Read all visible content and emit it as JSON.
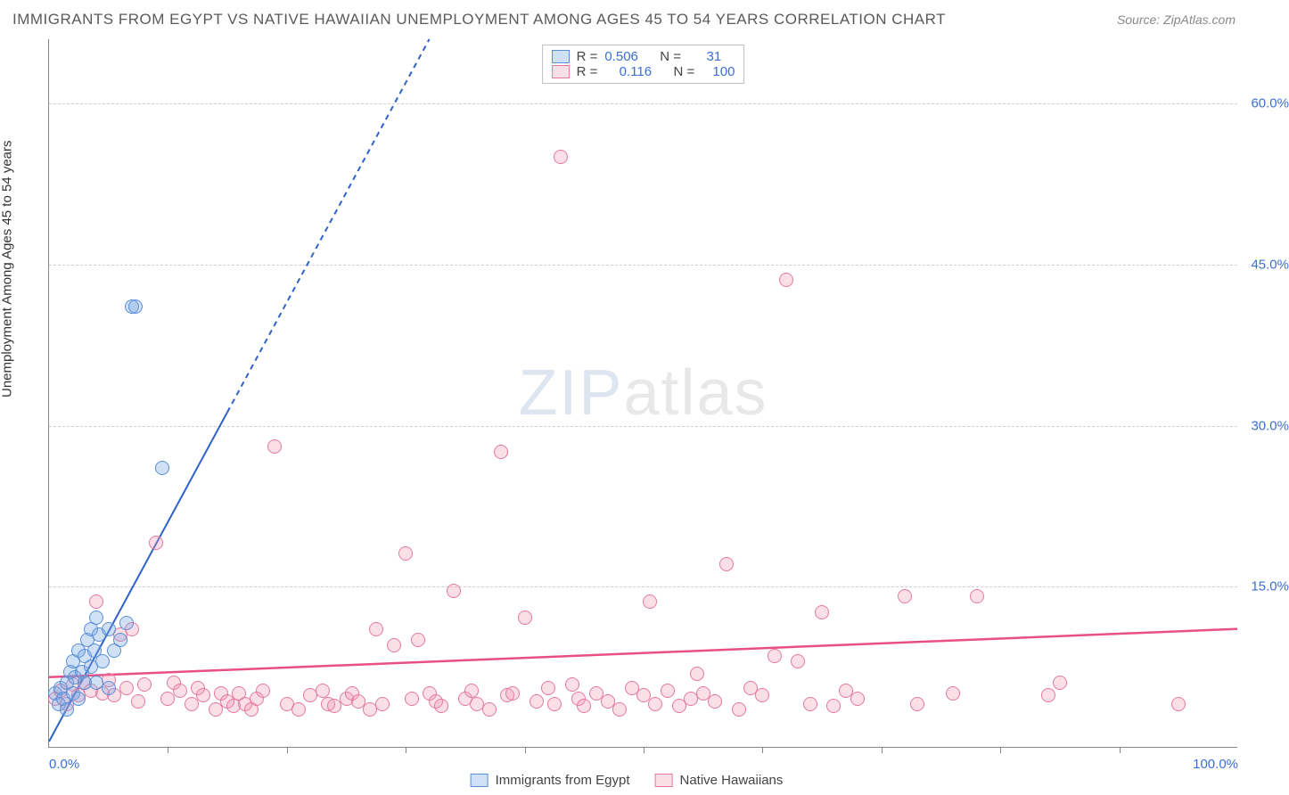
{
  "title": "IMMIGRANTS FROM EGYPT VS NATIVE HAWAIIAN UNEMPLOYMENT AMONG AGES 45 TO 54 YEARS CORRELATION CHART",
  "source": "Source: ZipAtlas.com",
  "y_axis_label": "Unemployment Among Ages 45 to 54 years",
  "watermark": {
    "part1": "ZIP",
    "part2": "atlas"
  },
  "chart": {
    "type": "scatter",
    "xlim": [
      0,
      100
    ],
    "ylim": [
      0,
      66
    ],
    "background_color": "#ffffff",
    "grid_color": "#d0d0d0",
    "axis_color": "#888888",
    "y_ticks": [
      {
        "v": 15,
        "label": "15.0%"
      },
      {
        "v": 30,
        "label": "30.0%"
      },
      {
        "v": 45,
        "label": "45.0%"
      },
      {
        "v": 60,
        "label": "60.0%"
      }
    ],
    "x_ticks_minor": [
      10,
      20,
      30,
      40,
      50,
      60,
      70,
      80,
      90
    ],
    "x_tick_labels": [
      {
        "v": 0,
        "label": "0.0%",
        "align": "left"
      },
      {
        "v": 100,
        "label": "100.0%",
        "align": "right"
      }
    ],
    "point_radius": 8,
    "series": [
      {
        "name": "Immigrants from Egypt",
        "fill": "rgba(120,165,225,0.35)",
        "stroke": "#5a8fd6",
        "trend": {
          "color": "#2f62c9",
          "width": 2,
          "dash_after_x": 15,
          "x1": 0,
          "y1": 0.5,
          "x2": 32,
          "y2": 66
        },
        "R": "0.506",
        "N": "31",
        "points": [
          [
            0.5,
            5
          ],
          [
            0.8,
            4
          ],
          [
            1,
            5.5
          ],
          [
            1.2,
            4.5
          ],
          [
            1.5,
            6
          ],
          [
            1.5,
            3.5
          ],
          [
            1.8,
            7
          ],
          [
            2,
            5
          ],
          [
            2,
            8
          ],
          [
            2.2,
            6.5
          ],
          [
            2.5,
            4.5
          ],
          [
            2.5,
            9
          ],
          [
            2.8,
            7
          ],
          [
            3,
            8.5
          ],
          [
            3,
            6
          ],
          [
            3.2,
            10
          ],
          [
            3.5,
            7.5
          ],
          [
            3.5,
            11
          ],
          [
            3.8,
            9
          ],
          [
            4,
            6
          ],
          [
            4,
            12
          ],
          [
            4.2,
            10.5
          ],
          [
            4.5,
            8
          ],
          [
            5,
            11
          ],
          [
            5.5,
            9
          ],
          [
            6,
            10
          ],
          [
            6.5,
            11.5
          ],
          [
            7,
            41
          ],
          [
            7.3,
            41
          ],
          [
            9.5,
            26
          ],
          [
            5,
            5.5
          ]
        ]
      },
      {
        "name": "Native Hawaiians",
        "fill": "rgba(240,150,175,0.3)",
        "stroke": "#e678a0",
        "trend": {
          "color": "#e84f87",
          "width": 2.5,
          "x1": 0,
          "y1": 6.5,
          "x2": 100,
          "y2": 11
        },
        "R": "0.116",
        "N": "100",
        "points": [
          [
            0.5,
            4.5
          ],
          [
            1,
            5.2
          ],
          [
            1.5,
            4
          ],
          [
            2,
            5.8
          ],
          [
            2.5,
            4.8
          ],
          [
            3,
            6
          ],
          [
            3.5,
            5.2
          ],
          [
            4,
            13.5
          ],
          [
            4.5,
            5
          ],
          [
            5,
            6.2
          ],
          [
            5.5,
            4.8
          ],
          [
            6,
            10.5
          ],
          [
            6.5,
            5.5
          ],
          [
            7,
            11
          ],
          [
            7.5,
            4.2
          ],
          [
            8,
            5.8
          ],
          [
            9,
            19
          ],
          [
            10,
            4.5
          ],
          [
            10.5,
            6
          ],
          [
            11,
            5.2
          ],
          [
            12,
            4
          ],
          [
            12.5,
            5.5
          ],
          [
            13,
            4.8
          ],
          [
            14,
            3.5
          ],
          [
            14.5,
            5
          ],
          [
            15,
            4.2
          ],
          [
            15.5,
            3.8
          ],
          [
            16,
            5
          ],
          [
            16.5,
            4
          ],
          [
            17,
            3.5
          ],
          [
            17.5,
            4.5
          ],
          [
            18,
            5.2
          ],
          [
            19,
            28
          ],
          [
            20,
            4
          ],
          [
            21,
            3.5
          ],
          [
            22,
            4.8
          ],
          [
            23,
            5.2
          ],
          [
            23.5,
            4
          ],
          [
            24,
            3.8
          ],
          [
            25,
            4.5
          ],
          [
            25.5,
            5
          ],
          [
            26,
            4.2
          ],
          [
            27,
            3.5
          ],
          [
            27.5,
            11
          ],
          [
            28,
            4
          ],
          [
            29,
            9.5
          ],
          [
            30,
            18
          ],
          [
            30.5,
            4.5
          ],
          [
            31,
            10
          ],
          [
            32,
            5
          ],
          [
            32.5,
            4.2
          ],
          [
            33,
            3.8
          ],
          [
            34,
            14.5
          ],
          [
            35,
            4.5
          ],
          [
            35.5,
            5.2
          ],
          [
            36,
            4
          ],
          [
            37,
            3.5
          ],
          [
            38,
            27.5
          ],
          [
            38.5,
            4.8
          ],
          [
            39,
            5
          ],
          [
            40,
            12
          ],
          [
            41,
            4.2
          ],
          [
            42,
            5.5
          ],
          [
            42.5,
            4
          ],
          [
            43,
            55
          ],
          [
            44,
            5.8
          ],
          [
            44.5,
            4.5
          ],
          [
            45,
            3.8
          ],
          [
            46,
            5
          ],
          [
            47,
            4.2
          ],
          [
            48,
            3.5
          ],
          [
            49,
            5.5
          ],
          [
            50,
            4.8
          ],
          [
            50.5,
            13.5
          ],
          [
            51,
            4
          ],
          [
            52,
            5.2
          ],
          [
            53,
            3.8
          ],
          [
            54,
            4.5
          ],
          [
            54.5,
            6.8
          ],
          [
            55,
            5
          ],
          [
            56,
            4.2
          ],
          [
            57,
            17
          ],
          [
            58,
            3.5
          ],
          [
            59,
            5.5
          ],
          [
            60,
            4.8
          ],
          [
            61,
            8.5
          ],
          [
            62,
            43.5
          ],
          [
            63,
            8
          ],
          [
            64,
            4
          ],
          [
            65,
            12.5
          ],
          [
            66,
            3.8
          ],
          [
            67,
            5.2
          ],
          [
            68,
            4.5
          ],
          [
            72,
            14
          ],
          [
            73,
            4
          ],
          [
            76,
            5
          ],
          [
            78,
            14
          ],
          [
            84,
            4.8
          ],
          [
            85,
            6
          ],
          [
            95,
            4
          ]
        ]
      }
    ]
  },
  "legend_top_labels": {
    "R": "R =",
    "N": "N ="
  },
  "legend_bottom": [
    {
      "label": "Immigrants from Egypt",
      "fill": "rgba(120,165,225,0.35)",
      "stroke": "#5a8fd6"
    },
    {
      "label": "Native Hawaiians",
      "fill": "rgba(240,150,175,0.3)",
      "stroke": "#e678a0"
    }
  ]
}
